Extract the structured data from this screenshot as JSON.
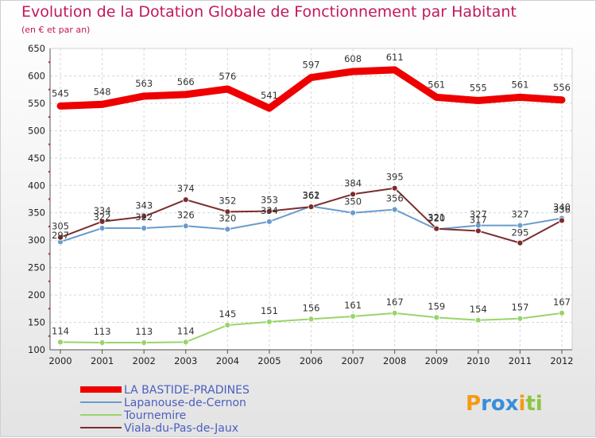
{
  "chart_data": {
    "type": "line",
    "title": "Evolution de la Dotation Globale de Fonctionnement par Habitant",
    "subtitle": "(en € et par an)",
    "xlabel": "",
    "ylabel": "",
    "x": [
      "2000",
      "2001",
      "2002",
      "2003",
      "2004",
      "2005",
      "2006",
      "2007",
      "2008",
      "2009",
      "2010",
      "2011",
      "2012"
    ],
    "ylim": [
      100,
      650
    ],
    "yticks": [
      "100",
      "150",
      "200",
      "250",
      "300",
      "350",
      "400",
      "450",
      "500",
      "550",
      "600",
      "650"
    ],
    "grid": true,
    "legend_position": "bottom-left",
    "series": [
      {
        "name": "LA BASTIDE-PRADINES",
        "color": "#ee0000",
        "values": [
          545,
          548,
          563,
          566,
          576,
          541,
          597,
          608,
          611,
          561,
          555,
          561,
          556
        ],
        "labels": [
          "545",
          "548",
          "563",
          "566",
          "576",
          "541",
          "597",
          "608",
          "611",
          "561",
          "555",
          "561",
          "556"
        ]
      },
      {
        "name": "Lapanouse-de-Cernon",
        "color": "#6a9ccc",
        "values": [
          297,
          322,
          322,
          326,
          320,
          334,
          362,
          350,
          356,
          320,
          327,
          327,
          340
        ],
        "labels": [
          "297",
          "322",
          "322",
          "326",
          "320",
          "334",
          "362",
          "350",
          "356",
          "320",
          "327",
          "327",
          "340"
        ]
      },
      {
        "name": "Tournemire",
        "color": "#99d46a",
        "values": [
          114,
          113,
          113,
          114,
          145,
          151,
          156,
          161,
          167,
          159,
          154,
          157,
          167
        ],
        "labels": [
          "114",
          "113",
          "113",
          "114",
          "145",
          "151",
          "156",
          "161",
          "167",
          "159",
          "154",
          "157",
          "167"
        ]
      },
      {
        "name": "Viala-du-Pas-de-Jaux",
        "color": "#7b2d2d",
        "values": [
          305,
          334,
          343,
          374,
          352,
          353,
          361,
          384,
          395,
          321,
          317,
          295,
          336
        ],
        "labels": [
          "305",
          "334",
          "343",
          "374",
          "352",
          "353",
          "361",
          "384",
          "395",
          "321",
          "317",
          "295",
          "336"
        ]
      }
    ]
  },
  "logo": {
    "text": "Proxiti"
  }
}
